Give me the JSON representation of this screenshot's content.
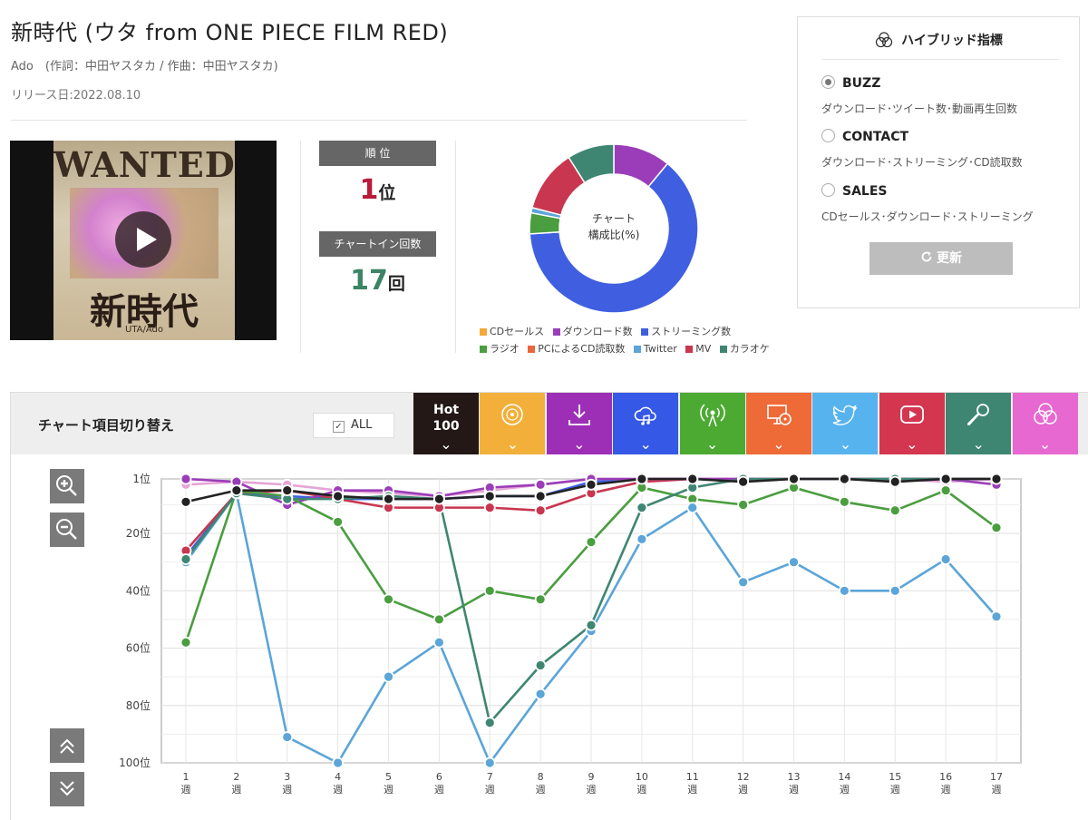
{
  "song": {
    "title": "新時代 (ウタ from ONE PIECE FILM RED)",
    "artist_line": "Ado　(作詞：中田ヤスタカ / 作曲：中田ヤスタカ)",
    "release": "リリース日:2022.08.10"
  },
  "thumbnail": {
    "poster_top": "WANTED",
    "poster_title": "新時代",
    "poster_credit": "UTA/Ado"
  },
  "stats": {
    "rank_label": "順 位",
    "rank_value": "1",
    "rank_unit": "位",
    "chartin_label": "チャートイン回数",
    "chartin_value": "17",
    "chartin_unit": "回"
  },
  "donut": {
    "center_line1": "チャート",
    "center_line2": "構成比(%)",
    "segments": [
      {
        "name": "CDセールス",
        "value": 0,
        "color": "#f2a93b"
      },
      {
        "name": "ダウンロード数",
        "value": 11,
        "color": "#9b3db8"
      },
      {
        "name": "ストリーミング数",
        "value": 63,
        "color": "#3f5fe0"
      },
      {
        "name": "ラジオ",
        "value": 4,
        "color": "#4a9e3f"
      },
      {
        "name": "PCによるCD読取数",
        "value": 0,
        "color": "#e9673d"
      },
      {
        "name": "Twitter",
        "value": 1,
        "color": "#5ba5d8"
      },
      {
        "name": "MV",
        "value": 12,
        "color": "#c93650"
      },
      {
        "name": "カラオケ",
        "value": 9,
        "color": "#3f8672"
      }
    ]
  },
  "legend": {
    "row1": [
      "CDセールス",
      "ダウンロード数",
      "ストリーミング数"
    ],
    "row2": [
      "ラジオ",
      "PCによるCD読取数",
      "Twitter",
      "MV",
      "カラオケ"
    ]
  },
  "hybrid": {
    "title": "ハイブリッド指標",
    "options": [
      {
        "label": "BUZZ",
        "desc": "ダウンロード･ツイート数･動画再生回数",
        "selected": true
      },
      {
        "label": "CONTACT",
        "desc": "ダウンロード･ストリーミング･CD読取数",
        "selected": false
      },
      {
        "label": "SALES",
        "desc": "CDセールス･ダウンロード･ストリーミング",
        "selected": false
      }
    ],
    "update_label": "更新"
  },
  "chart_switch": {
    "label": "チャート項目切り替え",
    "all_label": "ALL",
    "hot_line1": "Hot",
    "hot_line2": "100",
    "tabs": [
      {
        "name": "hot100",
        "icon": "hot100-text",
        "color": "#231815"
      },
      {
        "name": "cd-sales",
        "icon": "cd-disc-icon",
        "color": "#f2b03a"
      },
      {
        "name": "download",
        "icon": "download-icon",
        "color": "#9d2fb7"
      },
      {
        "name": "streaming",
        "icon": "cloud-music-icon",
        "color": "#3558e6"
      },
      {
        "name": "radio",
        "icon": "radio-antenna-icon",
        "color": "#4caa33"
      },
      {
        "name": "pc-cd-read",
        "icon": "pc-cd-icon",
        "color": "#ee6a37"
      },
      {
        "name": "twitter",
        "icon": "twitter-bird-icon",
        "color": "#57b3ee"
      },
      {
        "name": "mv",
        "icon": "youtube-play-icon",
        "color": "#d4364f"
      },
      {
        "name": "karaoke",
        "icon": "microphone-icon",
        "color": "#3f8672"
      },
      {
        "name": "hybrid",
        "icon": "hybrid-circles-icon",
        "color": "#e768d0"
      }
    ]
  },
  "chart_data": {
    "type": "line",
    "title": "",
    "y_ticks": [
      "1位",
      "20位",
      "40位",
      "60位",
      "80位",
      "100位"
    ],
    "y_tick_values": [
      1,
      20,
      40,
      60,
      80,
      100
    ],
    "ylim": [
      1,
      100
    ],
    "y_reversed": true,
    "x": [
      "1",
      "2",
      "3",
      "4",
      "5",
      "6",
      "7",
      "8",
      "9",
      "10",
      "11",
      "12",
      "13",
      "14",
      "15",
      "16",
      "17"
    ],
    "x_unit": "週",
    "grid": true,
    "series": [
      {
        "color": "#3f5fe0",
        "values": [
          28,
          6,
          7,
          8,
          8,
          8,
          7,
          7,
          2,
          1,
          1,
          1,
          1,
          1,
          1,
          1,
          1
        ]
      },
      {
        "color": "#c93650",
        "values": [
          26,
          6,
          5,
          8,
          11,
          11,
          11,
          12,
          6,
          2,
          1,
          1,
          1,
          1,
          1,
          1,
          1
        ]
      },
      {
        "color": "#e6a4d8",
        "values": [
          3,
          2,
          3,
          5,
          6,
          7,
          5,
          3,
          1,
          1,
          1,
          1,
          1,
          1,
          1,
          2,
          1
        ]
      },
      {
        "color": "#9b3db8",
        "values": [
          1,
          2,
          10,
          5,
          5,
          7,
          4,
          3,
          1,
          1,
          1,
          1,
          1,
          1,
          1,
          1,
          3
        ]
      },
      {
        "color": "#4a9e3f",
        "values": [
          58,
          5,
          7,
          16,
          43,
          50,
          40,
          43,
          23,
          4,
          8,
          10,
          4,
          9,
          12,
          5,
          18
        ]
      },
      {
        "color": "#5ba5d8",
        "values": [
          30,
          6,
          91,
          100,
          70,
          58,
          100,
          76,
          54,
          22,
          11,
          37,
          30,
          40,
          40,
          29,
          49
        ]
      },
      {
        "color": "#3f8672",
        "values": [
          29,
          6,
          8,
          8,
          7,
          8,
          86,
          66,
          52,
          11,
          4,
          1,
          1,
          1,
          1,
          1,
          1
        ]
      },
      {
        "color": "#222222",
        "values": [
          9,
          5,
          5,
          7,
          8,
          8,
          7,
          7,
          3,
          1,
          1,
          2,
          1,
          1,
          2,
          1,
          1
        ]
      }
    ]
  }
}
